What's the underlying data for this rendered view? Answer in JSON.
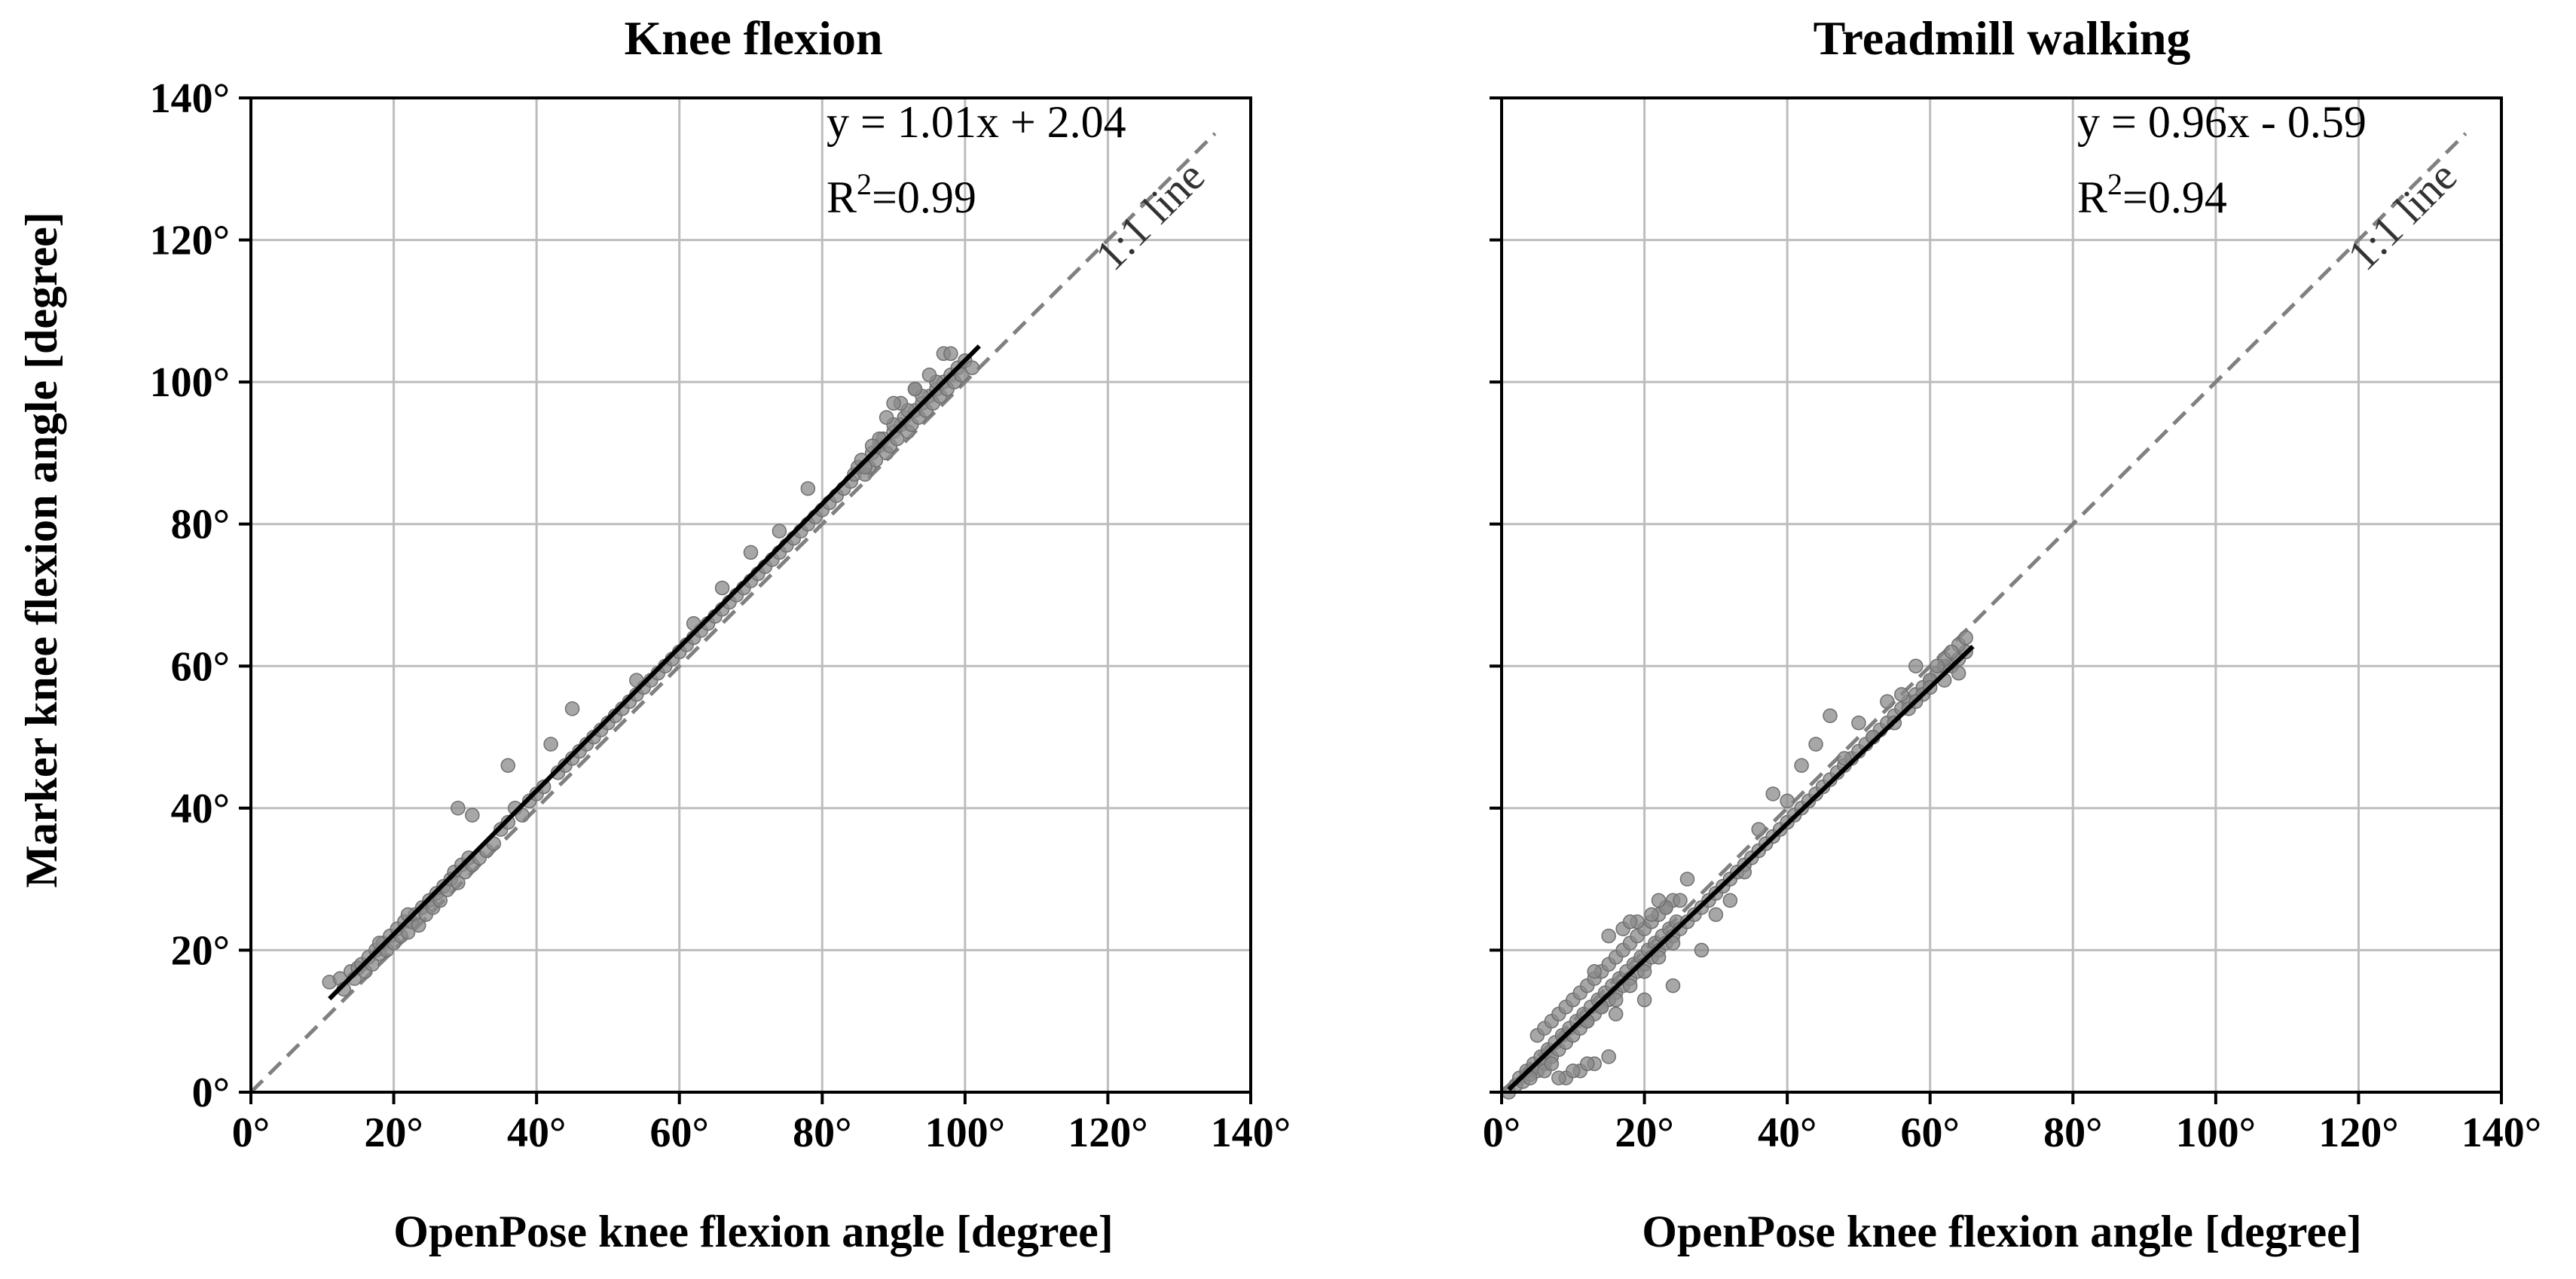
{
  "colors": {
    "points": "#8a8a8a",
    "fit_line": "#000000",
    "one_to_one_line": "#808080",
    "grid": "#bdbdbd",
    "axes": "#000000"
  },
  "y_axis_label": "Marker knee flexion angle [degree]",
  "chart_data": [
    {
      "type": "scatter",
      "title": "Knee flexion",
      "xlabel": "OpenPose knee flexion angle [degree]",
      "ylabel": "Marker knee flexion angle [degree]",
      "xlim": [
        0,
        140
      ],
      "ylim": [
        0,
        140
      ],
      "x_ticks": [
        "0°",
        "20°",
        "40°",
        "60°",
        "80°",
        "100°",
        "120°",
        "140°"
      ],
      "y_ticks": [
        "0°",
        "20°",
        "40°",
        "60°",
        "80°",
        "100°",
        "120°",
        "140°"
      ],
      "grid": true,
      "equation": "y = 1.01x + 2.04",
      "r2_prefix": "R",
      "r2_sup": "2",
      "r2_value": "=0.99",
      "one_to_one_label": "1:1 line",
      "fit": {
        "slope": 1.01,
        "intercept": 2.04,
        "x_range": [
          11,
          102
        ]
      },
      "x": [
        11,
        12.5,
        13,
        14,
        14.5,
        15,
        15.5,
        16,
        16.5,
        17,
        17.5,
        18,
        18.5,
        19,
        19.5,
        20,
        20.5,
        21,
        21.5,
        22,
        22.5,
        23,
        23.5,
        24,
        24.5,
        25,
        25.5,
        26,
        26.5,
        27,
        27.5,
        28,
        28.5,
        29,
        29.5,
        30,
        30.5,
        31,
        32,
        33,
        34,
        35,
        36,
        37,
        38,
        39,
        40,
        41,
        43,
        44,
        45,
        46,
        47,
        48,
        49,
        50,
        51,
        52,
        53,
        54,
        55,
        56,
        57,
        58,
        59,
        60,
        61,
        62,
        63,
        64,
        65,
        66,
        67,
        68,
        69,
        70,
        71,
        72,
        73,
        74,
        75,
        76,
        77,
        78,
        79,
        80,
        81,
        82,
        83,
        84,
        84.5,
        85,
        85.5,
        86,
        86.5,
        87,
        87.5,
        88,
        88.5,
        89,
        89.5,
        90,
        90.5,
        91,
        91.5,
        92,
        92.5,
        93,
        93.5,
        94,
        94.5,
        95,
        95.5,
        96,
        96.5,
        97,
        97.5,
        98,
        98.5,
        99,
        99.5,
        100,
        101,
        88,
        90,
        92,
        94,
        96,
        89,
        91,
        93,
        95,
        97,
        86,
        98,
        87,
        90,
        93,
        29,
        31,
        22,
        18,
        36,
        42,
        45,
        54,
        62,
        66,
        70,
        74,
        78
      ],
      "y": [
        15.5,
        16,
        14.5,
        17,
        16,
        17.5,
        18,
        17,
        19,
        18,
        20,
        19.5,
        21,
        20,
        22,
        21,
        23,
        22,
        24,
        22.5,
        24,
        25,
        23.5,
        26,
        25,
        27,
        26,
        28,
        27,
        29,
        28.5,
        30,
        31,
        29.5,
        32,
        31,
        33,
        32,
        33,
        34,
        35,
        37,
        38,
        40,
        39,
        41,
        42,
        43,
        45,
        46,
        47,
        48,
        49,
        50,
        51,
        52,
        53,
        54,
        55,
        56,
        57,
        58,
        59,
        60,
        61,
        62,
        63,
        64,
        65,
        66,
        67,
        68,
        69,
        70,
        71,
        72,
        73,
        74,
        75,
        76,
        77,
        78,
        79,
        80,
        81,
        82,
        83,
        84,
        85,
        86,
        87,
        88,
        89,
        87,
        88,
        90,
        89,
        91,
        92,
        90,
        91,
        93,
        92,
        94,
        95,
        93,
        94,
        96,
        95,
        97,
        96,
        98,
        97,
        99,
        98,
        100,
        99,
        101,
        100,
        102,
        101,
        103,
        102,
        92,
        94,
        96,
        98,
        100,
        95,
        97,
        99,
        101,
        104,
        88,
        104,
        91,
        97,
        99,
        40,
        39,
        25,
        21,
        46,
        49,
        54,
        58,
        66,
        71,
        76,
        79,
        85
      ]
    },
    {
      "type": "scatter",
      "title": "Treadmill walking",
      "xlabel": "OpenPose knee flexion angle [degree]",
      "ylabel": "",
      "xlim": [
        0,
        140
      ],
      "ylim": [
        0,
        140
      ],
      "x_ticks": [
        "0°",
        "20°",
        "40°",
        "60°",
        "80°",
        "100°",
        "120°",
        "140°"
      ],
      "y_ticks": [],
      "grid": true,
      "equation": "y = 0.96x - 0.59",
      "r2_prefix": "R",
      "r2_sup": "2",
      "r2_value": "=0.94",
      "one_to_one_label": "1:1 line",
      "fit": {
        "slope": 0.96,
        "intercept": -0.59,
        "x_range": [
          1,
          66
        ]
      },
      "x": [
        1,
        2,
        2.5,
        3,
        3.5,
        4,
        4.5,
        5,
        5.5,
        6,
        6.5,
        7,
        7.5,
        8,
        8.5,
        9,
        9.5,
        10,
        10.5,
        11,
        11.5,
        12,
        12.5,
        13,
        13.5,
        14,
        14.5,
        15,
        15.5,
        16,
        16.5,
        17,
        17.5,
        18,
        18.5,
        19,
        19.5,
        20,
        20.5,
        21,
        21.5,
        22,
        22.5,
        23,
        23.5,
        24,
        24.5,
        25,
        26,
        27,
        28,
        29,
        30,
        31,
        32,
        33,
        34,
        35,
        36,
        37,
        38,
        39,
        40,
        41,
        42,
        43,
        44,
        45,
        46,
        47,
        48,
        49,
        50,
        51,
        52,
        53,
        54,
        55,
        56,
        57,
        58,
        59,
        60,
        61,
        62,
        63,
        64,
        65,
        5,
        6,
        7,
        8,
        9,
        10,
        11,
        12,
        13,
        14,
        15,
        16,
        17,
        18,
        19,
        20,
        21,
        22,
        23,
        24,
        15,
        17,
        19,
        21,
        23,
        25,
        14,
        16,
        18,
        20,
        22,
        24,
        13,
        18,
        22,
        26,
        12,
        16,
        20,
        24,
        28,
        30,
        32,
        34,
        36,
        38,
        40,
        42,
        44,
        46,
        48,
        50,
        52,
        54,
        56,
        58,
        60,
        62,
        64,
        57,
        59,
        61,
        63,
        65,
        55,
        58,
        60,
        62,
        64,
        9,
        11,
        13,
        15,
        10,
        12,
        8,
        6,
        4,
        7
      ],
      "y": [
        0,
        1,
        2,
        1.5,
        3,
        2.5,
        4,
        3,
        5,
        4,
        6,
        5,
        7,
        6,
        8,
        7,
        9,
        8,
        10,
        9,
        11,
        10,
        12,
        11,
        13,
        12,
        14,
        13,
        15,
        14,
        16,
        15,
        17,
        16,
        18,
        17,
        19,
        18,
        20,
        19,
        21,
        20,
        22,
        21,
        23,
        22,
        24,
        23,
        24,
        25,
        26,
        27,
        28,
        29,
        30,
        31,
        32,
        33,
        34,
        35,
        36,
        37,
        38,
        39,
        40,
        41,
        42,
        43,
        44,
        45,
        46,
        47,
        48,
        49,
        50,
        51,
        52,
        53,
        54,
        55,
        56,
        57,
        58,
        59,
        60,
        60,
        61,
        62,
        8,
        9,
        10,
        11,
        12,
        13,
        14,
        15,
        16,
        17,
        18,
        19,
        20,
        21,
        22,
        23,
        24,
        25,
        26,
        27,
        22,
        23,
        24,
        25,
        26,
        27,
        12,
        13,
        15,
        17,
        19,
        21,
        17,
        24,
        27,
        30,
        10,
        11,
        13,
        15,
        20,
        25,
        27,
        31,
        37,
        42,
        41,
        46,
        49,
        53,
        47,
        52,
        50,
        55,
        56,
        60,
        58,
        61,
        63,
        54,
        56,
        60,
        62,
        64,
        52,
        55,
        57,
        58,
        59,
        2,
        3,
        4,
        5,
        3,
        4,
        2,
        3,
        2,
        4
      ]
    }
  ]
}
